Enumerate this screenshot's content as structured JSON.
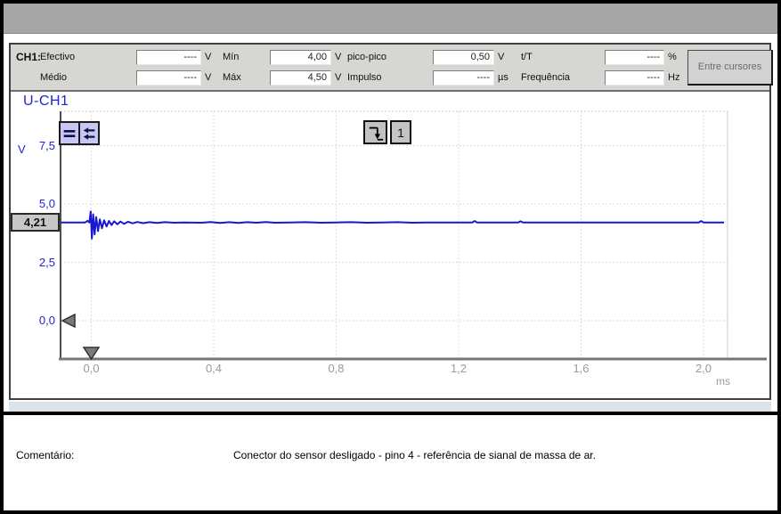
{
  "measurements": {
    "channel": "CH1:",
    "button": "Entre cursores",
    "fields": [
      {
        "label": "Efectivo",
        "value": "----",
        "unit": "V"
      },
      {
        "label": "Médio",
        "value": "----",
        "unit": "V"
      },
      {
        "label": "Mín",
        "value": "4,00",
        "unit": "V"
      },
      {
        "label": "Máx",
        "value": "4,50",
        "unit": "V"
      },
      {
        "label": "pico-pico",
        "value": "0,50",
        "unit": "V"
      },
      {
        "label": "Impulso",
        "value": "----",
        "unit": "µs"
      },
      {
        "label": "t/T",
        "value": "----",
        "unit": "%"
      },
      {
        "label": "Frequência",
        "value": "----",
        "unit": "Hz"
      }
    ]
  },
  "scope": {
    "trace_label": "U-CH1",
    "y_unit": "V",
    "x_unit": "ms",
    "level_badge": "4,21",
    "trigger_channel": "1"
  },
  "comment": {
    "label": "Comentário:",
    "text": "Conector do sensor desligado - pino 4 - referência de sianal de massa de ar."
  },
  "chart_data": {
    "type": "line",
    "title": "U-CH1",
    "xlabel": "ms",
    "ylabel": "V",
    "xlim": [
      -0.1,
      2.08
    ],
    "ylim": [
      -1.6,
      9.0
    ],
    "grid": true,
    "x_ticks": [
      0.0,
      0.4,
      0.8,
      1.2,
      1.6,
      2.0
    ],
    "x_tick_labels": [
      "0,0",
      "0,4",
      "0,8",
      "1,2",
      "1,6",
      "2,0"
    ],
    "y_ticks": [
      0.0,
      2.5,
      5.0,
      7.5
    ],
    "y_tick_labels": [
      "0,0",
      "2,5",
      "5,0",
      "7,5"
    ],
    "markers": {
      "ground_level_v": 0.0,
      "trigger_time_ms": 0.0,
      "channel_level_v": 4.21
    },
    "series": [
      {
        "name": "U-CH1",
        "color": "#1818cc",
        "points": [
          [
            -0.1,
            4.21
          ],
          [
            -0.02,
            4.21
          ],
          [
            -0.012,
            4.28
          ],
          [
            -0.006,
            4.21
          ],
          [
            -0.002,
            4.68
          ],
          [
            0.002,
            3.52
          ],
          [
            0.006,
            4.56
          ],
          [
            0.011,
            3.7
          ],
          [
            0.016,
            4.44
          ],
          [
            0.022,
            3.84
          ],
          [
            0.028,
            4.34
          ],
          [
            0.035,
            3.96
          ],
          [
            0.042,
            4.3
          ],
          [
            0.05,
            4.04
          ],
          [
            0.058,
            4.27
          ],
          [
            0.066,
            4.1
          ],
          [
            0.075,
            4.26
          ],
          [
            0.085,
            4.13
          ],
          [
            0.095,
            4.25
          ],
          [
            0.107,
            4.15
          ],
          [
            0.12,
            4.24
          ],
          [
            0.135,
            4.17
          ],
          [
            0.15,
            4.23
          ],
          [
            0.17,
            4.18
          ],
          [
            0.19,
            4.22
          ],
          [
            0.215,
            4.19
          ],
          [
            0.24,
            4.22
          ],
          [
            0.27,
            4.2
          ],
          [
            0.3,
            4.21
          ],
          [
            0.36,
            4.2
          ],
          [
            0.39,
            4.23
          ],
          [
            0.42,
            4.19
          ],
          [
            0.45,
            4.22
          ],
          [
            0.48,
            4.19
          ],
          [
            0.51,
            4.22
          ],
          [
            0.54,
            4.2
          ],
          [
            0.57,
            4.23
          ],
          [
            0.6,
            4.2
          ],
          [
            0.65,
            4.21
          ],
          [
            0.7,
            4.22
          ],
          [
            0.75,
            4.2
          ],
          [
            0.8,
            4.21
          ],
          [
            0.85,
            4.22
          ],
          [
            0.9,
            4.2
          ],
          [
            0.95,
            4.21
          ],
          [
            1.0,
            4.22
          ],
          [
            1.05,
            4.2
          ],
          [
            1.1,
            4.21
          ],
          [
            1.15,
            4.21
          ],
          [
            1.2,
            4.21
          ],
          [
            1.245,
            4.21
          ],
          [
            1.252,
            4.27
          ],
          [
            1.26,
            4.21
          ],
          [
            1.35,
            4.21
          ],
          [
            1.395,
            4.21
          ],
          [
            1.402,
            4.26
          ],
          [
            1.41,
            4.21
          ],
          [
            1.5,
            4.21
          ],
          [
            1.6,
            4.21
          ],
          [
            1.7,
            4.21
          ],
          [
            1.8,
            4.21
          ],
          [
            1.9,
            4.21
          ],
          [
            1.985,
            4.21
          ],
          [
            1.992,
            4.27
          ],
          [
            2.0,
            4.21
          ],
          [
            2.067,
            4.21
          ]
        ]
      }
    ]
  }
}
